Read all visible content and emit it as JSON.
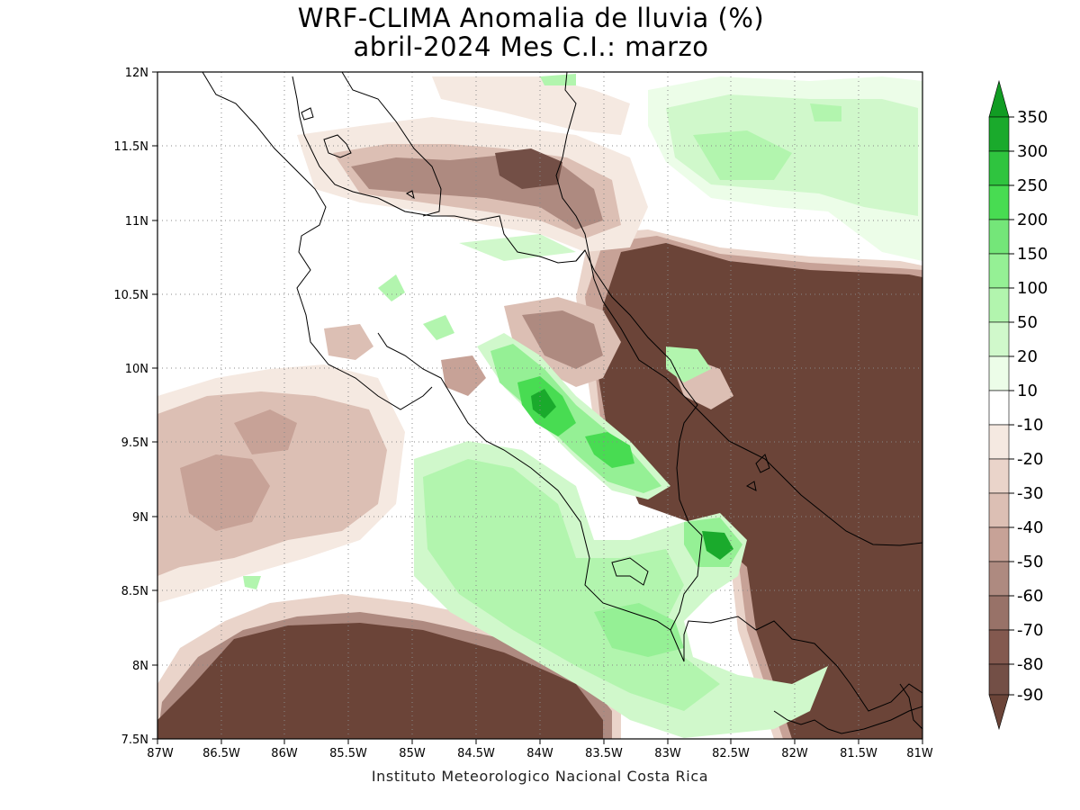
{
  "header": {
    "title_line1": "WRF-CLIMA Anomalia de lluvia (%)",
    "title_line2": "abril-2024 Mes C.I.: marzo"
  },
  "footer": {
    "credit": "Instituto Meteorologico Nacional Costa Rica"
  },
  "map": {
    "region": "Costa Rica",
    "lon_range": [
      -87,
      -81
    ],
    "lat_range": [
      7.5,
      12
    ],
    "grid": true,
    "lat_ticks": [
      "7.5N",
      "8N",
      "8.5N",
      "9N",
      "9.5N",
      "10N",
      "10.5N",
      "11N",
      "11.5N",
      "12N"
    ],
    "lon_ticks": [
      "87W",
      "86.5W",
      "86W",
      "85.5W",
      "85W",
      "84.5W",
      "84W",
      "83.5W",
      "83W",
      "82.5W",
      "82W",
      "81.5W",
      "81W"
    ]
  },
  "legend": {
    "labels": [
      "350",
      "300",
      "250",
      "200",
      "150",
      "100",
      "50",
      "20",
      "10",
      "-10",
      "-20",
      "-30",
      "-40",
      "-50",
      "-60",
      "-70",
      "-80",
      "-90"
    ],
    "colors": {
      "top_arrow": "#119c23",
      "bin_300_350": "#1aaa2c",
      "bin_250_300": "#2fc43f",
      "bin_200_250": "#48dc52",
      "bin_150_200": "#74e679",
      "bin_100_150": "#95f095",
      "bin_50_100": "#b2f5ae",
      "bin_20_50": "#d0f8cb",
      "bin_10_20": "#ecfde8",
      "bin_neutral": "#ffffff",
      "bin_m20_m10": "#f5e9e1",
      "bin_m30_m20": "#ead4ca",
      "bin_m40_m30": "#dcbfb4",
      "bin_m50_m40": "#c7a297",
      "bin_m60_m50": "#ae8a80",
      "bin_m70_m60": "#987268",
      "bin_m80_m70": "#83594f",
      "bin_m90_m80": "#734f46",
      "bottom_arrow": "#6b4438"
    }
  }
}
